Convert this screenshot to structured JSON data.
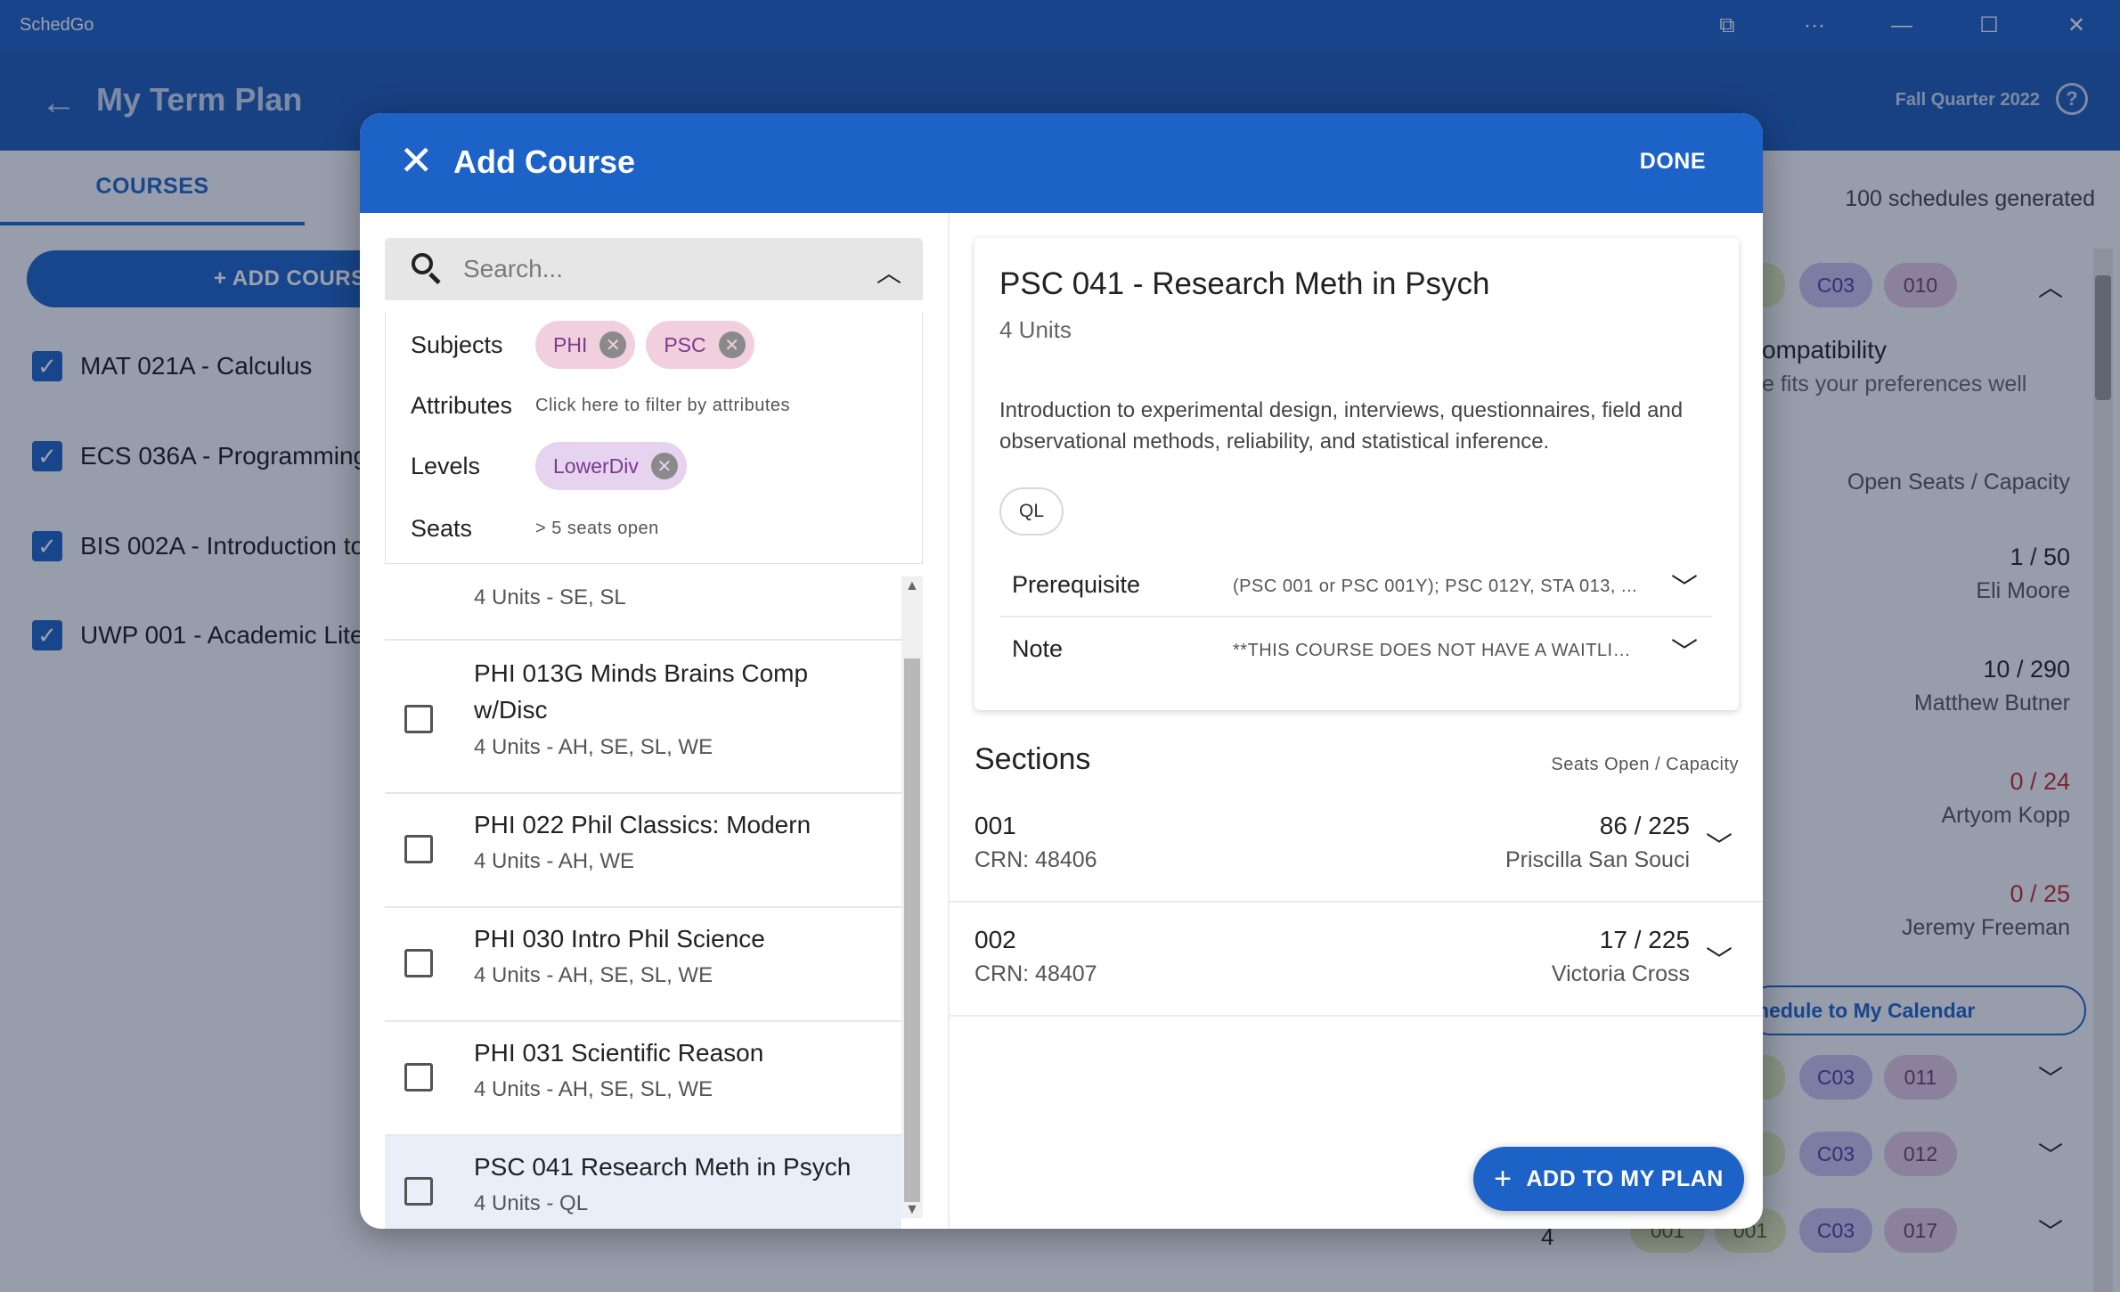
{
  "window": {
    "app_name": "SchedGo",
    "controls": [
      "⧉",
      "···",
      "—",
      "☐",
      "✕"
    ]
  },
  "appbar": {
    "title": "My Term Plan",
    "term": "Fall Quarter 2022",
    "help": "?"
  },
  "background": {
    "tab_courses": "COURSES",
    "add_course": "+ ADD COURSE",
    "courses": [
      "MAT 021A - Calculus",
      "ECS 036A - Programming",
      "BIS 002A - Introduction to",
      "UWP 001 - Academic Lite"
    ],
    "schedules_generated": "100 schedules generated",
    "compat_title": "ompatibility",
    "compat_sub": "e fits your preferences well",
    "open_seats_header": "Open Seats / Capacity",
    "seat_rows": [
      {
        "seats": "1 / 50",
        "instructor": "Eli Moore"
      },
      {
        "seats": "10 / 290",
        "instructor": "Matthew Butner"
      },
      {
        "seats": "0 / 24",
        "instructor": "Artyom Kopp"
      },
      {
        "seats": "0 / 25",
        "instructor": "Jeremy Freeman"
      }
    ],
    "calendar_button": "hedule to My Calendar",
    "pills_top": [
      "C03",
      "010"
    ],
    "pill_rows": [
      [
        "C03",
        "011"
      ],
      [
        "C03",
        "012"
      ],
      [
        "C03",
        "017"
      ]
    ],
    "bottom_partial": [
      "4",
      "001",
      "001"
    ]
  },
  "modal": {
    "title": "Add Course",
    "done": "DONE",
    "search_placeholder": "Search...",
    "filters": {
      "subjects_label": "Subjects",
      "subjects": [
        "PHI",
        "PSC"
      ],
      "attributes_label": "Attributes",
      "attributes_hint": "Click here to filter by attributes",
      "levels_label": "Levels",
      "levels": [
        "LowerDiv"
      ],
      "seats_label": "Seats",
      "seats_hint": "> 5 seats open"
    },
    "course_list": [
      {
        "name": "",
        "units": "4 Units - SE, SL",
        "selected": false
      },
      {
        "name": "PHI 013G Minds Brains Comp w/Disc",
        "units": "4 Units - AH, SE, SL, WE",
        "selected": false
      },
      {
        "name": "PHI 022 Phil Classics: Modern",
        "units": "4 Units - AH, WE",
        "selected": false
      },
      {
        "name": "PHI 030 Intro Phil Science",
        "units": "4 Units - AH, SE, SL, WE",
        "selected": false
      },
      {
        "name": "PHI 031 Scientific Reason",
        "units": "4 Units - AH, SE, SL, WE",
        "selected": false
      },
      {
        "name": "PSC 041 Research Meth in Psych",
        "units": "4 Units - QL",
        "selected": true
      }
    ],
    "detail": {
      "title": "PSC 041 - Research Meth in Psych",
      "units": "4 Units",
      "description": "Introduction to experimental design, interviews, questionnaires, field and observational methods, reliability, and statistical inference.",
      "attribute_chip": "QL",
      "prerequisite_label": "Prerequisite",
      "prerequisite_value": "(PSC 001 or PSC 001Y); PSC 012Y, STA 013, ...",
      "note_label": "Note",
      "note_value": "**THIS COURSE DOES NOT HAVE A WAITLIST..."
    },
    "sections_title": "Sections",
    "sections_hint": "Seats Open / Capacity",
    "sections": [
      {
        "number": "001",
        "crn": "CRN: 48406",
        "seats": "86 / 225",
        "instructor": "Priscilla San Souci"
      },
      {
        "number": "002",
        "crn": "CRN: 48407",
        "seats": "17 / 225",
        "instructor": "Victoria Cross"
      }
    ],
    "add_to_plan": "ADD TO MY PLAN"
  },
  "colors": {
    "primary": "#1d63c7",
    "titlebar": "#1d5fc5",
    "chip_subject": "#f2cfdc",
    "chip_level": "#e6d3f0",
    "seat_full": "#c62828"
  }
}
